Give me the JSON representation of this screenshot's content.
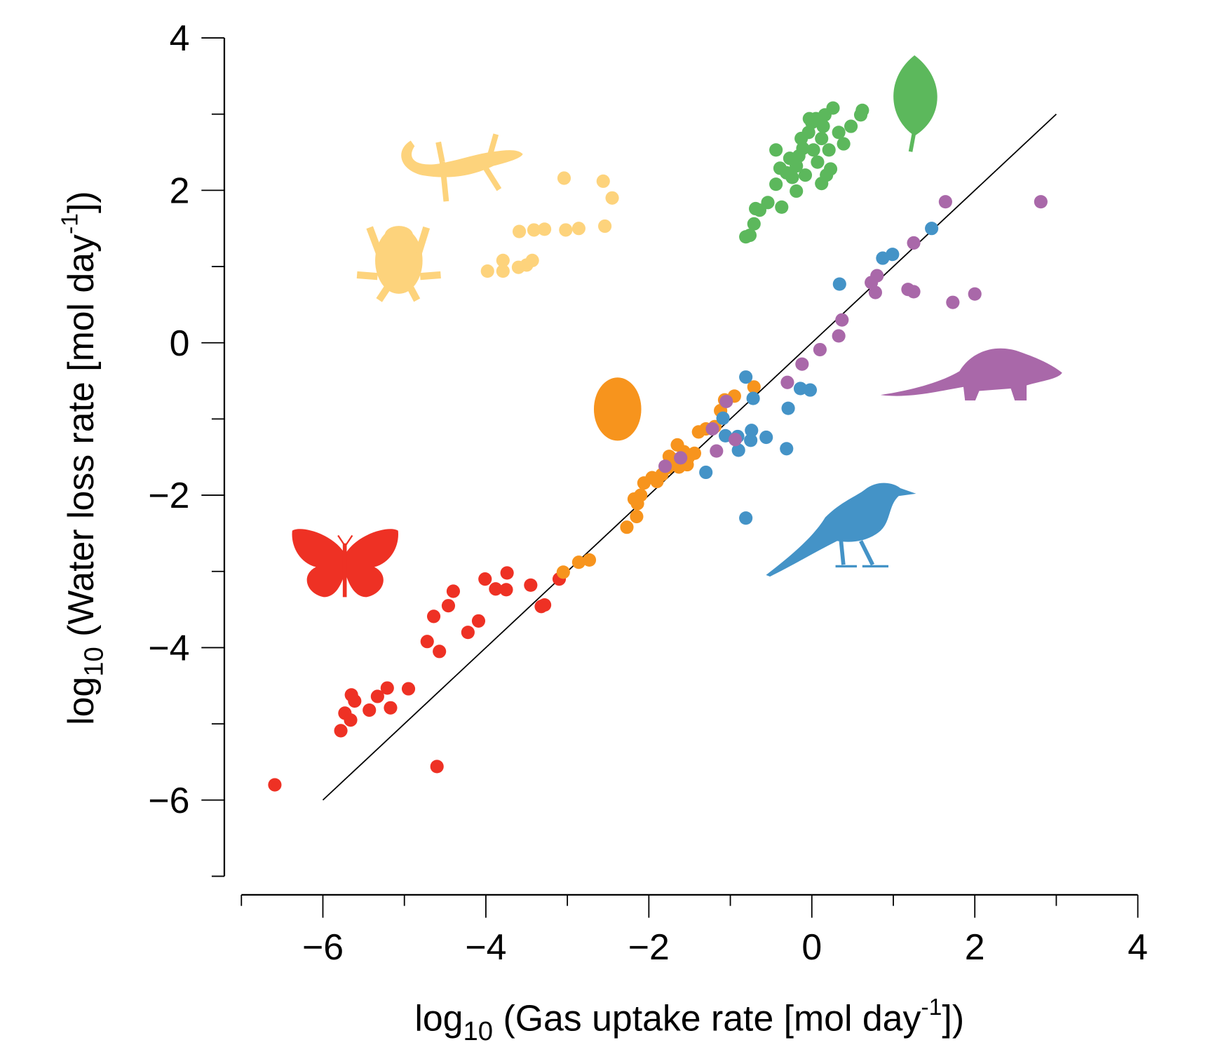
{
  "chart_data": {
    "type": "scatter",
    "title": "",
    "xlabel": {
      "prefix": "log",
      "sub": "10",
      "main": " (Gas uptake rate [mol day",
      "sup": "-1",
      "suffix": "])"
    },
    "ylabel": {
      "prefix": "log",
      "sub": "10",
      "main": " (Water loss rate [mol day",
      "sup": "-1",
      "suffix": "])"
    },
    "xlim": [
      -7,
      4
    ],
    "ylim": [
      -7,
      4
    ],
    "xticks": [
      "−6",
      "−4",
      "−2",
      "0",
      "2",
      "4"
    ],
    "xtick_values": [
      -6,
      -4,
      -2,
      0,
      2,
      4
    ],
    "yticks": [
      "4",
      "2",
      "0",
      "−2",
      "−4",
      "−6"
    ],
    "ytick_values": [
      4,
      2,
      0,
      -2,
      -4,
      -6
    ],
    "grid": false,
    "reference_line": {
      "x": [
        -6,
        3
      ],
      "y": [
        -6,
        3
      ],
      "color": "#000000"
    },
    "series": [
      {
        "group": "insects",
        "icon": "butterfly-icon",
        "color": "#ee3124",
        "points": [
          [
            -6.59,
            -5.8
          ],
          [
            -5.78,
            -5.09
          ],
          [
            -5.65,
            -4.62
          ],
          [
            -5.73,
            -4.86
          ],
          [
            -5.61,
            -4.7
          ],
          [
            -5.66,
            -4.95
          ],
          [
            -5.43,
            -4.82
          ],
          [
            -5.33,
            -4.64
          ],
          [
            -5.21,
            -4.53
          ],
          [
            -5.17,
            -4.79
          ],
          [
            -4.95,
            -4.54
          ],
          [
            -4.72,
            -3.92
          ],
          [
            -4.57,
            -4.05
          ],
          [
            -4.64,
            -3.59
          ],
          [
            -4.46,
            -3.45
          ],
          [
            -4.4,
            -3.26
          ],
          [
            -4.22,
            -3.8
          ],
          [
            -4.09,
            -3.65
          ],
          [
            -4.01,
            -3.1
          ],
          [
            -3.88,
            -3.23
          ],
          [
            -3.75,
            -3.24
          ],
          [
            -3.74,
            -3.02
          ],
          [
            -3.45,
            -3.18
          ],
          [
            -3.32,
            -3.46
          ],
          [
            -3.28,
            -3.44
          ],
          [
            -3.1,
            -3.1
          ],
          [
            -4.6,
            -5.56
          ]
        ]
      },
      {
        "group": "eggs",
        "icon": "egg-icon",
        "color": "#f7941d",
        "points": [
          [
            -3.05,
            -3.01
          ],
          [
            -2.86,
            -2.88
          ],
          [
            -2.73,
            -2.85
          ],
          [
            -2.27,
            -2.42
          ],
          [
            -2.15,
            -2.28
          ],
          [
            -2.18,
            -2.05
          ],
          [
            -2.1,
            -2.0
          ],
          [
            -2.06,
            -1.84
          ],
          [
            -1.96,
            -1.77
          ],
          [
            -1.84,
            -1.73
          ],
          [
            -1.77,
            -1.64
          ],
          [
            -1.72,
            -1.52
          ],
          [
            -1.65,
            -1.34
          ],
          [
            -1.57,
            -1.43
          ],
          [
            -1.63,
            -1.63
          ],
          [
            -1.53,
            -1.6
          ],
          [
            -1.44,
            -1.45
          ],
          [
            -1.39,
            -1.17
          ],
          [
            -1.3,
            -1.13
          ],
          [
            -1.19,
            -1.1
          ],
          [
            -1.12,
            -0.89
          ],
          [
            -1.07,
            -0.75
          ],
          [
            -0.95,
            -0.7
          ],
          [
            -0.71,
            -0.58
          ],
          [
            -2.14,
            -2.11
          ],
          [
            -1.75,
            -1.49
          ],
          [
            -1.52,
            -1.51
          ],
          [
            -1.9,
            -1.82
          ]
        ]
      },
      {
        "group": "birds",
        "icon": "bird-icon",
        "color": "#4493c7",
        "points": [
          [
            -0.81,
            -0.45
          ],
          [
            -0.72,
            -0.73
          ],
          [
            -0.74,
            -1.15
          ],
          [
            -0.75,
            -1.28
          ],
          [
            -0.9,
            -1.41
          ],
          [
            -0.91,
            -1.23
          ],
          [
            -1.06,
            -1.22
          ],
          [
            -1.09,
            -0.99
          ],
          [
            -0.56,
            -1.24
          ],
          [
            -0.31,
            -1.39
          ],
          [
            -0.29,
            -0.86
          ],
          [
            -0.14,
            -0.6
          ],
          [
            -0.02,
            -0.62
          ],
          [
            0.34,
            0.77
          ],
          [
            0.87,
            1.11
          ],
          [
            0.99,
            1.16
          ],
          [
            1.47,
            1.5
          ],
          [
            -0.81,
            -2.3
          ],
          [
            -1.3,
            -1.7
          ]
        ]
      },
      {
        "group": "mammals",
        "icon": "rodent-icon",
        "color": "#a968a9",
        "points": [
          [
            -1.8,
            -1.62
          ],
          [
            -1.61,
            -1.51
          ],
          [
            -1.17,
            -1.42
          ],
          [
            -1.22,
            -1.13
          ],
          [
            -0.94,
            -1.27
          ],
          [
            -1.05,
            -0.77
          ],
          [
            -0.3,
            -0.52
          ],
          [
            -0.12,
            -0.28
          ],
          [
            0.1,
            -0.09
          ],
          [
            0.33,
            0.09
          ],
          [
            0.37,
            0.3
          ],
          [
            0.73,
            0.79
          ],
          [
            0.8,
            0.88
          ],
          [
            0.78,
            0.66
          ],
          [
            1.18,
            0.7
          ],
          [
            1.25,
            0.67
          ],
          [
            1.25,
            1.31
          ],
          [
            1.64,
            1.85
          ],
          [
            1.73,
            0.53
          ],
          [
            2.0,
            0.64
          ],
          [
            2.81,
            1.85
          ]
        ]
      },
      {
        "group": "plants",
        "icon": "leaf-icon",
        "color": "#5cb85c",
        "points": [
          [
            -0.81,
            1.39
          ],
          [
            -0.76,
            1.41
          ],
          [
            -0.71,
            1.56
          ],
          [
            -0.69,
            1.76
          ],
          [
            -0.64,
            1.74
          ],
          [
            -0.54,
            1.84
          ],
          [
            -0.37,
            1.78
          ],
          [
            -0.44,
            2.08
          ],
          [
            -0.44,
            2.53
          ],
          [
            -0.39,
            2.29
          ],
          [
            -0.31,
            2.23
          ],
          [
            -0.24,
            2.17
          ],
          [
            -0.19,
            1.99
          ],
          [
            -0.19,
            2.32
          ],
          [
            -0.16,
            2.45
          ],
          [
            -0.11,
            2.55
          ],
          [
            -0.04,
            2.76
          ],
          [
            0.0,
            2.89
          ],
          [
            0.05,
            2.94
          ],
          [
            0.16,
            2.99
          ],
          [
            0.26,
            3.08
          ],
          [
            0.33,
            2.76
          ],
          [
            0.39,
            2.61
          ],
          [
            0.48,
            2.84
          ],
          [
            0.6,
            2.99
          ],
          [
            0.62,
            3.05
          ],
          [
            0.12,
            2.09
          ],
          [
            0.18,
            2.2
          ],
          [
            0.23,
            2.28
          ],
          [
            0.07,
            2.37
          ],
          [
            -0.08,
            2.2
          ],
          [
            0.02,
            2.53
          ],
          [
            -0.27,
            2.42
          ],
          [
            -0.13,
            2.68
          ],
          [
            0.12,
            2.68
          ],
          [
            0.21,
            2.53
          ],
          [
            -0.03,
            2.94
          ],
          [
            0.14,
            2.84
          ]
        ]
      },
      {
        "group": "amphibians-reptiles",
        "icon": "gecko-frog-icon",
        "color": "#fdd37c",
        "points": [
          [
            -3.98,
            0.94
          ],
          [
            -3.79,
            0.94
          ],
          [
            -3.79,
            1.08
          ],
          [
            -3.6,
            0.99
          ],
          [
            -3.5,
            1.02
          ],
          [
            -3.43,
            1.08
          ],
          [
            -3.59,
            1.46
          ],
          [
            -3.41,
            1.48
          ],
          [
            -3.28,
            1.49
          ],
          [
            -3.02,
            1.48
          ],
          [
            -2.86,
            1.5
          ],
          [
            -2.54,
            1.53
          ],
          [
            -3.04,
            2.16
          ],
          [
            -2.56,
            2.12
          ],
          [
            -2.45,
            1.9
          ]
        ]
      }
    ]
  }
}
